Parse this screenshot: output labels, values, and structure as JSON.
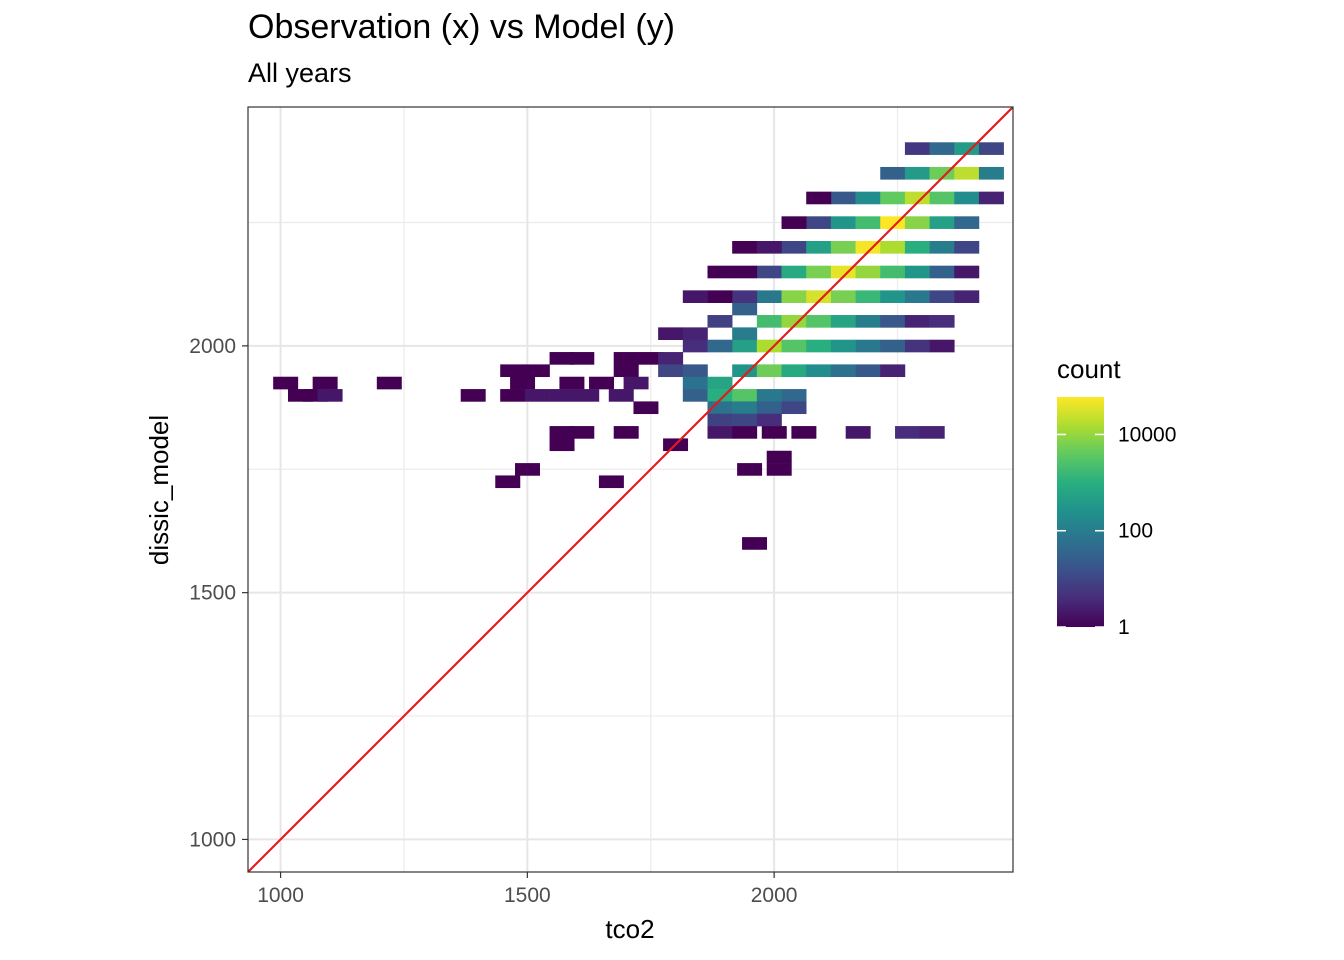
{
  "title": "Observation (x) vs Model (y)",
  "subtitle": "All years",
  "chart_data": {
    "type": "heatmap",
    "xlabel": "tco2",
    "ylabel": "dissic_model",
    "xlim": [
      934,
      2484
    ],
    "ylim": [
      934,
      2484
    ],
    "x_ticks": [
      1000,
      1500,
      2000
    ],
    "y_ticks": [
      1000,
      1500,
      2000
    ],
    "grid": true,
    "bin_width": 50,
    "identity_line": {
      "slope": 1,
      "intercept": 0,
      "color": "#e41a1c"
    },
    "legend": {
      "title": "count",
      "scale": "log10",
      "range": [
        1,
        60000
      ],
      "ticks": [
        1,
        100,
        10000
      ],
      "labels": [
        "1",
        "100",
        "10000"
      ],
      "placement": "right"
    },
    "bins": [
      [
        1010,
        1925,
        1
      ],
      [
        1090,
        1925,
        1
      ],
      [
        1220,
        1925,
        1
      ],
      [
        1040,
        1900,
        1
      ],
      [
        1070,
        1900,
        1
      ],
      [
        1100,
        1900,
        2
      ],
      [
        1390,
        1900,
        1
      ],
      [
        1470,
        1950,
        1
      ],
      [
        1520,
        1950,
        1
      ],
      [
        1570,
        1975,
        1
      ],
      [
        1610,
        1975,
        1
      ],
      [
        1700,
        1975,
        1
      ],
      [
        1700,
        1950,
        1
      ],
      [
        1750,
        1975,
        1
      ],
      [
        1490,
        1925,
        1
      ],
      [
        1590,
        1925,
        1
      ],
      [
        1650,
        1925,
        1
      ],
      [
        1720,
        1925,
        2
      ],
      [
        1470,
        1900,
        1
      ],
      [
        1520,
        1900,
        2
      ],
      [
        1570,
        1900,
        2
      ],
      [
        1620,
        1900,
        2
      ],
      [
        1690,
        1900,
        2
      ],
      [
        1740,
        1875,
        1
      ],
      [
        1570,
        1825,
        1
      ],
      [
        1610,
        1825,
        1
      ],
      [
        1700,
        1825,
        1
      ],
      [
        1570,
        1800,
        1
      ],
      [
        1500,
        1750,
        1
      ],
      [
        1460,
        1725,
        1
      ],
      [
        1670,
        1725,
        1
      ],
      [
        1800,
        1800,
        1
      ],
      [
        1950,
        1750,
        1
      ],
      [
        1960,
        1600,
        1
      ],
      [
        2010,
        1775,
        1
      ],
      [
        2010,
        1750,
        1
      ],
      [
        1790,
        2025,
        2
      ],
      [
        1840,
        2000,
        4
      ],
      [
        1840,
        2025,
        3
      ],
      [
        1890,
        2050,
        8
      ],
      [
        1940,
        2075,
        30
      ],
      [
        1790,
        1975,
        3
      ],
      [
        1790,
        1950,
        10
      ],
      [
        1840,
        1950,
        20
      ],
      [
        1840,
        1925,
        60
      ],
      [
        1890,
        1925,
        600
      ],
      [
        1840,
        1900,
        30
      ],
      [
        1890,
        1900,
        1000
      ],
      [
        1940,
        1900,
        3000
      ],
      [
        1990,
        1900,
        80
      ],
      [
        2040,
        1900,
        40
      ],
      [
        1890,
        1875,
        60
      ],
      [
        1940,
        1875,
        100
      ],
      [
        1990,
        1875,
        30
      ],
      [
        2040,
        1875,
        10
      ],
      [
        1890,
        1850,
        8
      ],
      [
        1940,
        1850,
        10
      ],
      [
        1990,
        1850,
        4
      ],
      [
        1890,
        1825,
        2
      ],
      [
        1940,
        1825,
        1
      ],
      [
        2000,
        1825,
        1
      ],
      [
        2060,
        1825,
        1
      ],
      [
        2170,
        1825,
        2
      ],
      [
        2270,
        1825,
        4
      ],
      [
        2320,
        1825,
        3
      ],
      [
        1940,
        1950,
        300
      ],
      [
        1990,
        1950,
        5000
      ],
      [
        2040,
        1950,
        800
      ],
      [
        2090,
        1950,
        200
      ],
      [
        2140,
        1950,
        60
      ],
      [
        2190,
        1950,
        20
      ],
      [
        2240,
        1950,
        3
      ],
      [
        1940,
        2000,
        500
      ],
      [
        1990,
        2000,
        15000
      ],
      [
        2040,
        2000,
        3000
      ],
      [
        2090,
        2000,
        1000
      ],
      [
        2140,
        2000,
        300
      ],
      [
        2190,
        2000,
        80
      ],
      [
        2240,
        2000,
        30
      ],
      [
        2290,
        2000,
        5
      ],
      [
        2340,
        2000,
        2
      ],
      [
        1890,
        2000,
        40
      ],
      [
        1940,
        2025,
        100
      ],
      [
        1990,
        2050,
        2000
      ],
      [
        2040,
        2050,
        10000
      ],
      [
        2090,
        2050,
        3000
      ],
      [
        2140,
        2050,
        600
      ],
      [
        2190,
        2050,
        100
      ],
      [
        2240,
        2050,
        20
      ],
      [
        2290,
        2050,
        3
      ],
      [
        2340,
        2050,
        4
      ],
      [
        1990,
        2100,
        80
      ],
      [
        2040,
        2100,
        8000
      ],
      [
        2090,
        2100,
        30000
      ],
      [
        2140,
        2100,
        6000
      ],
      [
        2190,
        2100,
        1500
      ],
      [
        2240,
        2100,
        300
      ],
      [
        2290,
        2100,
        80
      ],
      [
        2340,
        2100,
        10
      ],
      [
        2390,
        2100,
        3
      ],
      [
        1940,
        2100,
        5
      ],
      [
        1890,
        2100,
        1
      ],
      [
        1840,
        2100,
        2
      ],
      [
        1990,
        2150,
        10
      ],
      [
        2040,
        2150,
        800
      ],
      [
        2090,
        2150,
        6000
      ],
      [
        2140,
        2150,
        40000
      ],
      [
        2190,
        2150,
        10000
      ],
      [
        2240,
        2150,
        2000
      ],
      [
        2290,
        2150,
        300
      ],
      [
        2340,
        2150,
        30
      ],
      [
        2390,
        2150,
        2
      ],
      [
        1890,
        2150,
        1
      ],
      [
        1940,
        2150,
        1
      ],
      [
        2040,
        2200,
        10
      ],
      [
        2090,
        2200,
        500
      ],
      [
        2140,
        2200,
        6000
      ],
      [
        2190,
        2200,
        50000
      ],
      [
        2240,
        2200,
        15000
      ],
      [
        2290,
        2200,
        1000
      ],
      [
        2340,
        2200,
        100
      ],
      [
        2390,
        2200,
        10
      ],
      [
        1940,
        2200,
        1
      ],
      [
        1990,
        2200,
        2
      ],
      [
        2090,
        2250,
        10
      ],
      [
        2140,
        2250,
        300
      ],
      [
        2190,
        2250,
        2000
      ],
      [
        2240,
        2250,
        60000
      ],
      [
        2290,
        2250,
        8000
      ],
      [
        2340,
        2250,
        500
      ],
      [
        2390,
        2250,
        40
      ],
      [
        2040,
        2250,
        1
      ],
      [
        2140,
        2300,
        20
      ],
      [
        2190,
        2300,
        200
      ],
      [
        2240,
        2300,
        4000
      ],
      [
        2290,
        2300,
        20000
      ],
      [
        2340,
        2300,
        3000
      ],
      [
        2390,
        2300,
        200
      ],
      [
        2090,
        2300,
        1
      ],
      [
        2440,
        2300,
        3
      ],
      [
        2240,
        2350,
        30
      ],
      [
        2290,
        2350,
        400
      ],
      [
        2340,
        2350,
        5000
      ],
      [
        2390,
        2350,
        20000
      ],
      [
        2440,
        2350,
        100
      ],
      [
        2290,
        2400,
        6
      ],
      [
        2340,
        2400,
        40
      ],
      [
        2390,
        2400,
        400
      ],
      [
        2440,
        2400,
        10
      ]
    ]
  }
}
